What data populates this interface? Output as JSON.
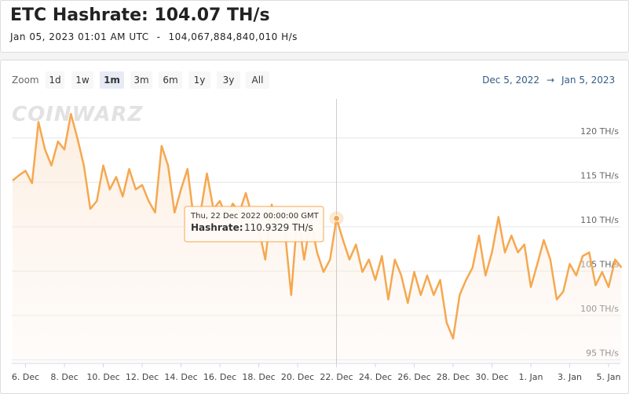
{
  "header": {
    "title": "ETC Hashrate: 104.07 TH/s",
    "timestamp": "Jan 05, 2023 01:01 AM UTC",
    "separator": "-",
    "raw_value": "104,067,884,840,010 H/s"
  },
  "toolbar": {
    "zoom_label": "Zoom",
    "buttons": [
      "1d",
      "1w",
      "1m",
      "3m",
      "6m",
      "1y",
      "3y",
      "All"
    ],
    "range_from": "Dec 5, 2022",
    "range_arrow": "→",
    "range_to": "Jan 5, 2023"
  },
  "chart_data": {
    "type": "line",
    "watermark": "COINWARZ",
    "color": "#f5a84f",
    "grid": true,
    "categories": [
      null,
      null,
      "6. Dec",
      null,
      null,
      null,
      null,
      null,
      "8. Dec",
      null,
      null,
      null,
      null,
      null,
      "10. Dec",
      null,
      null,
      null,
      null,
      null,
      "12. Dec",
      null,
      null,
      null,
      null,
      null,
      "14. Dec",
      null,
      null,
      null,
      null,
      null,
      "16. Dec",
      null,
      null,
      null,
      null,
      null,
      "18. Dec",
      null,
      null,
      null,
      null,
      null,
      "20. Dec",
      null,
      null,
      null,
      null,
      null,
      "22. Dec",
      null,
      null,
      null,
      null,
      null,
      "24. Dec",
      null,
      null,
      null,
      null,
      null,
      "26. Dec",
      null,
      null,
      null,
      null,
      null,
      "28. Dec",
      null,
      null,
      null,
      null,
      null,
      "30. Dec",
      null,
      null,
      null,
      null,
      null,
      "1. Jan",
      null,
      null,
      null,
      null,
      null,
      "3. Jan",
      null,
      null,
      null,
      null,
      null,
      "5. Jan",
      null,
      null
    ],
    "series": [
      {
        "values": [
          115.2,
          115.8,
          116.3,
          114.9,
          121.8,
          118.7,
          116.9,
          119.6,
          118.7,
          122.7,
          120.0,
          116.9,
          112.0,
          112.9,
          116.9,
          114.2,
          115.6,
          113.4,
          116.5,
          114.2,
          114.7,
          112.9,
          111.6,
          119.1,
          116.9,
          111.6,
          114.2,
          116.5,
          110.7,
          111.6,
          116.0,
          112.0,
          112.9,
          111.1,
          112.6,
          111.6,
          113.8,
          111.1,
          109.8,
          106.3,
          112.5,
          109.8,
          109.8,
          102.3,
          111.6,
          106.3,
          110.7,
          107.1,
          104.9,
          106.3,
          110.9329,
          108.5,
          106.3,
          108.0,
          104.9,
          106.3,
          104.0,
          106.7,
          101.8,
          106.3,
          104.5,
          101.4,
          104.9,
          102.3,
          104.5,
          102.3,
          104.0,
          99.2,
          97.4,
          102.3,
          104.0,
          105.4,
          109.0,
          104.5,
          107.1,
          111.1,
          107.1,
          109.0,
          107.1,
          108.0,
          103.2,
          105.8,
          108.5,
          106.3,
          101.8,
          102.7,
          105.8,
          104.5,
          106.7,
          107.1,
          103.4,
          104.9,
          103.2,
          106.3,
          105.4
        ]
      }
    ],
    "ylim": [
      94.6,
      124.4
    ],
    "yticks": [
      {
        "value": 95,
        "label": "95 TH/s"
      },
      {
        "value": 100,
        "label": "100 TH/s"
      },
      {
        "value": 105,
        "label": "105 TH/s"
      },
      {
        "value": 110,
        "label": "110 TH/s"
      },
      {
        "value": 115,
        "label": "115 TH/s"
      },
      {
        "value": 120,
        "label": "120 TH/s"
      }
    ],
    "tooltip": {
      "header": "Thu, 22 Dec 2022 00:00:00 GMT",
      "label": "Hashrate:",
      "value_label": "110.9329 TH/s"
    }
  }
}
